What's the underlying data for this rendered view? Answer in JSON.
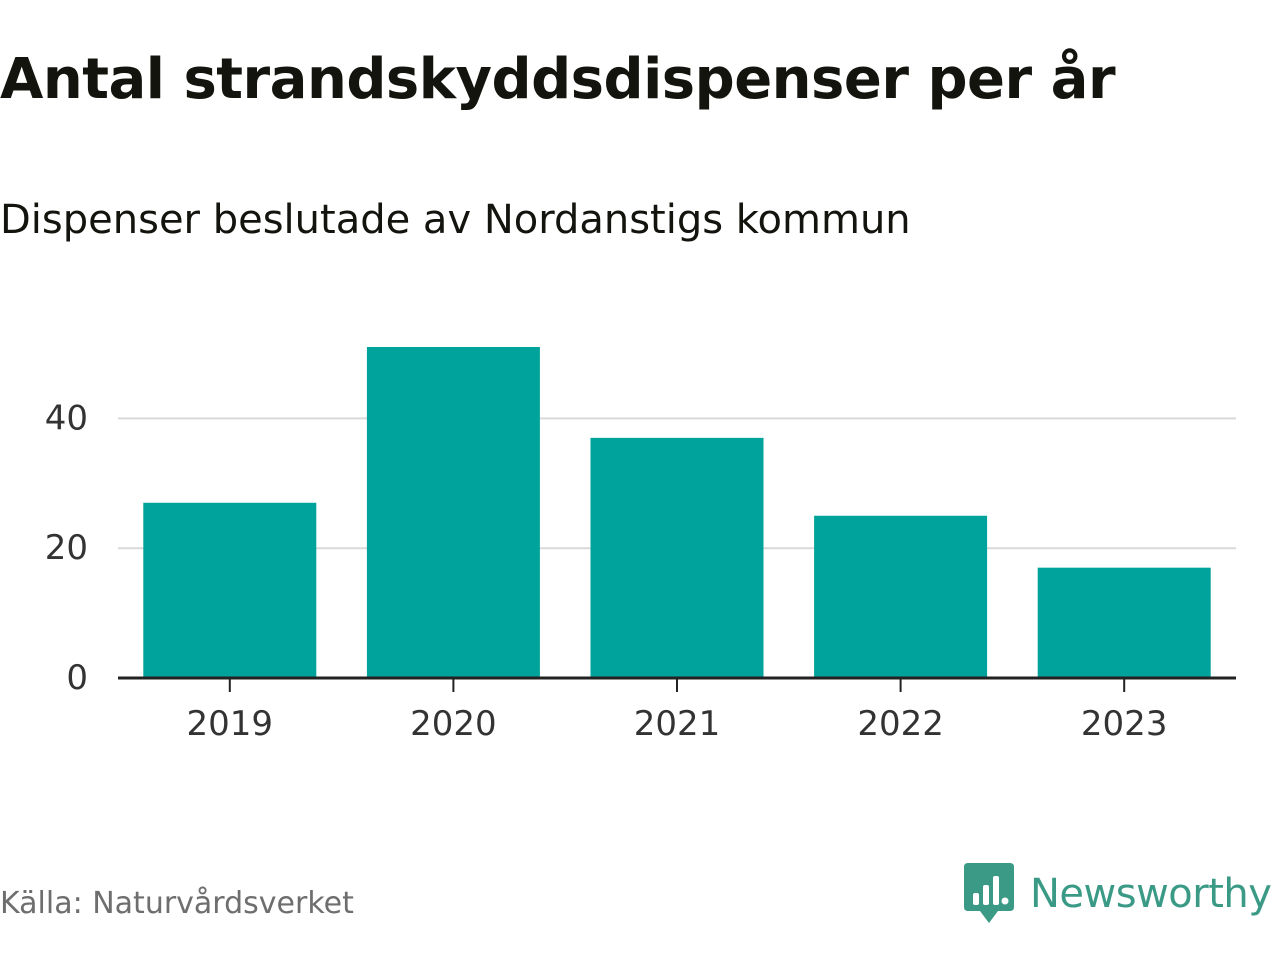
{
  "header": {
    "title": "Antal strandskyddsdispenser per år",
    "subtitle": "Dispenser beslutade av Nordanstigs kommun"
  },
  "footer": {
    "source": "Källa: Naturvårdsverket",
    "brand": "Newsworthy",
    "brand_icon": "newsworthy-logo-icon"
  },
  "colors": {
    "bar": "#00a39b",
    "grid": "#d9d9d9",
    "axis": "#222222",
    "brand": "#3a9a85"
  },
  "chart_data": {
    "type": "bar",
    "title": "Antal strandskyddsdispenser per år",
    "subtitle": "Dispenser beslutade av Nordanstigs kommun",
    "categories": [
      "2019",
      "2020",
      "2021",
      "2022",
      "2023"
    ],
    "values": [
      27,
      51,
      37,
      25,
      17
    ],
    "xlabel": "",
    "ylabel": "",
    "ylim": [
      0,
      51
    ],
    "yticks": [
      0,
      20,
      40
    ],
    "grid": true,
    "legend": "none"
  }
}
